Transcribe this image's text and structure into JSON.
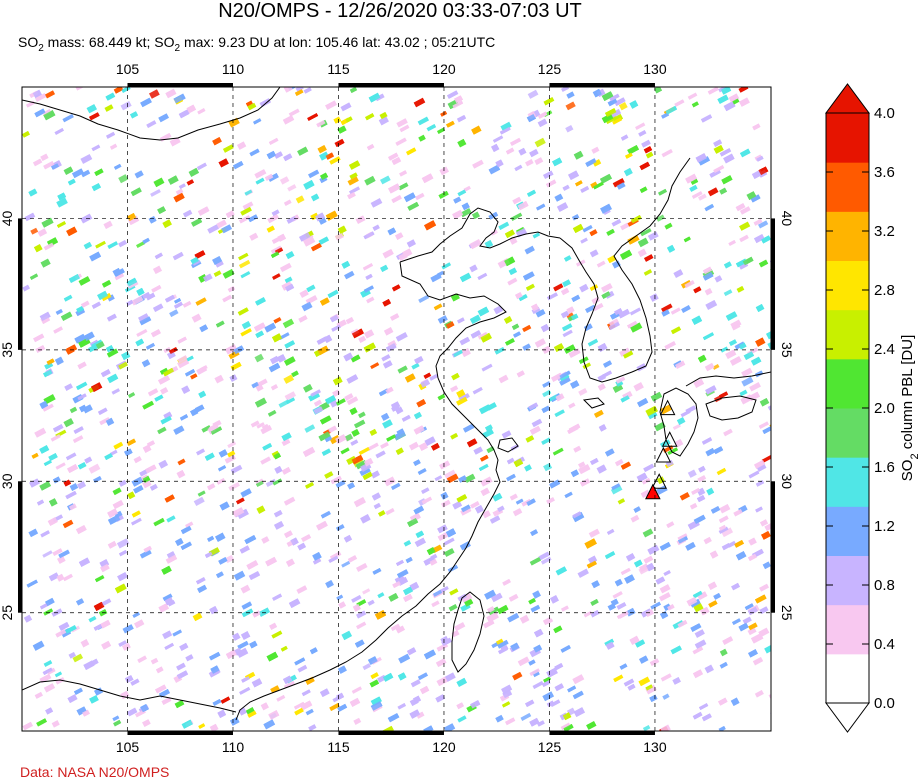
{
  "header": {
    "title": "N20/OMPS - 12/26/2020 03:33-07:03 UT",
    "subtitle_parts": [
      "SO",
      "2",
      " mass: 68.449 kt; SO",
      "2",
      " max: 9.23 DU at lon: 105.46 lat: 43.02 ; 05:21UTC"
    ]
  },
  "footer": {
    "credit": "Data: NASA N20/OMPS"
  },
  "map": {
    "lon_ticks": [
      "105",
      "110",
      "115",
      "120",
      "125",
      "130"
    ],
    "lat_ticks": [
      "40",
      "35",
      "30",
      "25"
    ],
    "lon_values": [
      105,
      110,
      115,
      120,
      125,
      130
    ],
    "lat_values": [
      40,
      35,
      30,
      25
    ],
    "lon_range": [
      100,
      135.5
    ],
    "lat_range": [
      20.5,
      45
    ],
    "volcano_markers": [
      [
        130.6,
        32.8
      ],
      [
        130.7,
        31.6
      ],
      [
        130.4,
        31.0
      ],
      [
        130.2,
        30.0
      ],
      [
        129.9,
        29.6
      ]
    ],
    "highlight_color": "#ff0000"
  },
  "colorbar": {
    "label_prefix": "SO",
    "label_sub": "2",
    "label_suffix": " column PBL [DU]",
    "ticks": [
      "4.0",
      "3.6",
      "3.2",
      "2.8",
      "2.4",
      "2.0",
      "1.6",
      "1.2",
      "0.8",
      "0.4",
      "0.0"
    ],
    "range": [
      0.0,
      4.0
    ],
    "colors": [
      "#ffffff",
      "#f8c8f0",
      "#c8b4ff",
      "#78aaff",
      "#50e6e6",
      "#64dc64",
      "#50e632",
      "#c8f000",
      "#ffe600",
      "#ffb400",
      "#ff5a00",
      "#e61400"
    ]
  }
}
